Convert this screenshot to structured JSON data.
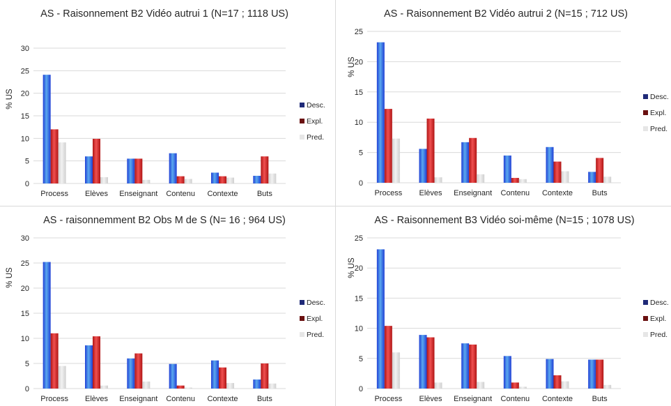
{
  "colors": {
    "desc": "#1f3fd6",
    "desc_light": "#5aa8ee",
    "expl": "#b01515",
    "expl_light": "#f05050",
    "pred": "#d9d9d9",
    "grid": "#d9d9d9",
    "legend_desc": "#1f2a78",
    "legend_expl": "#6a1010",
    "legend_pred": "#e6e6e6"
  },
  "chart_data": [
    {
      "type": "bar",
      "title": "AS - Raisonnement B2 Vidéo autrui 1 (N=17 ; 1118 US)",
      "ylabel": "% US",
      "xlabel": "",
      "ylim": [
        0,
        30
      ],
      "yticks": [
        0,
        5,
        10,
        15,
        20,
        25,
        30
      ],
      "grid": true,
      "legend_position": "right",
      "categories": [
        "Process",
        "Elèves",
        "Enseignant",
        "Contenu",
        "Contexte",
        "Buts"
      ],
      "series": [
        {
          "name": "Desc.",
          "values": [
            24.1,
            6.0,
            5.5,
            6.7,
            2.4,
            1.7
          ]
        },
        {
          "name": "Expl.",
          "values": [
            12.0,
            9.9,
            5.5,
            1.6,
            1.6,
            6.0
          ]
        },
        {
          "name": "Pred.",
          "values": [
            9.1,
            1.4,
            0.8,
            1.0,
            1.3,
            2.2
          ]
        }
      ]
    },
    {
      "type": "bar",
      "title": "AS - Raisonnement B2 Vidéo autrui 2 (N=15 ; 712 US)",
      "ylabel": "% US",
      "xlabel": "",
      "ylim": [
        0,
        25
      ],
      "yticks": [
        0,
        5,
        10,
        15,
        20,
        25
      ],
      "grid": true,
      "legend_position": "right",
      "categories": [
        "Process",
        "Elèves",
        "Enseignant",
        "Contenu",
        "Contexte",
        "Buts"
      ],
      "series": [
        {
          "name": "Desc.",
          "values": [
            23.2,
            5.6,
            6.7,
            4.5,
            5.9,
            1.8
          ]
        },
        {
          "name": "Expl.",
          "values": [
            12.2,
            10.6,
            7.4,
            0.8,
            3.5,
            4.1
          ]
        },
        {
          "name": "Pred.",
          "values": [
            7.3,
            0.9,
            1.4,
            0.6,
            1.9,
            1.0
          ]
        }
      ]
    },
    {
      "type": "bar",
      "title": "AS - raisonnemment B2 Obs M de S (N= 16 ; 964 US)",
      "ylabel": "% US",
      "xlabel": "",
      "ylim": [
        0,
        30
      ],
      "yticks": [
        0,
        5,
        10,
        15,
        20,
        25,
        30
      ],
      "grid": true,
      "legend_position": "right",
      "categories": [
        "Process",
        "Elèves",
        "Enseignant",
        "Contenu",
        "Contexte",
        "Buts"
      ],
      "series": [
        {
          "name": "Desc.",
          "values": [
            25.2,
            8.6,
            6.0,
            4.9,
            5.6,
            1.8
          ]
        },
        {
          "name": "Expl.",
          "values": [
            11.0,
            10.4,
            7.0,
            0.6,
            4.2,
            5.0
          ]
        },
        {
          "name": "Pred.",
          "values": [
            4.5,
            0.6,
            1.4,
            0.2,
            1.1,
            1.0
          ]
        }
      ]
    },
    {
      "type": "bar",
      "title": "AS - Raisonnement B3 Vidéo soi-même (N=15 ; 1078 US)",
      "ylabel": "% US",
      "xlabel": "",
      "ylim": [
        0,
        25
      ],
      "yticks": [
        0,
        5,
        10,
        15,
        20,
        25
      ],
      "grid": true,
      "legend_position": "right",
      "categories": [
        "Process",
        "Elèves",
        "Enseignant",
        "Contenu",
        "Contexte",
        "Buts"
      ],
      "series": [
        {
          "name": "Desc.",
          "values": [
            23.1,
            8.9,
            7.5,
            5.4,
            4.9,
            4.8
          ]
        },
        {
          "name": "Expl.",
          "values": [
            10.4,
            8.5,
            7.3,
            1.0,
            2.2,
            4.8
          ]
        },
        {
          "name": "Pred.",
          "values": [
            6.0,
            1.0,
            1.1,
            0.3,
            1.2,
            0.6
          ]
        }
      ]
    }
  ]
}
